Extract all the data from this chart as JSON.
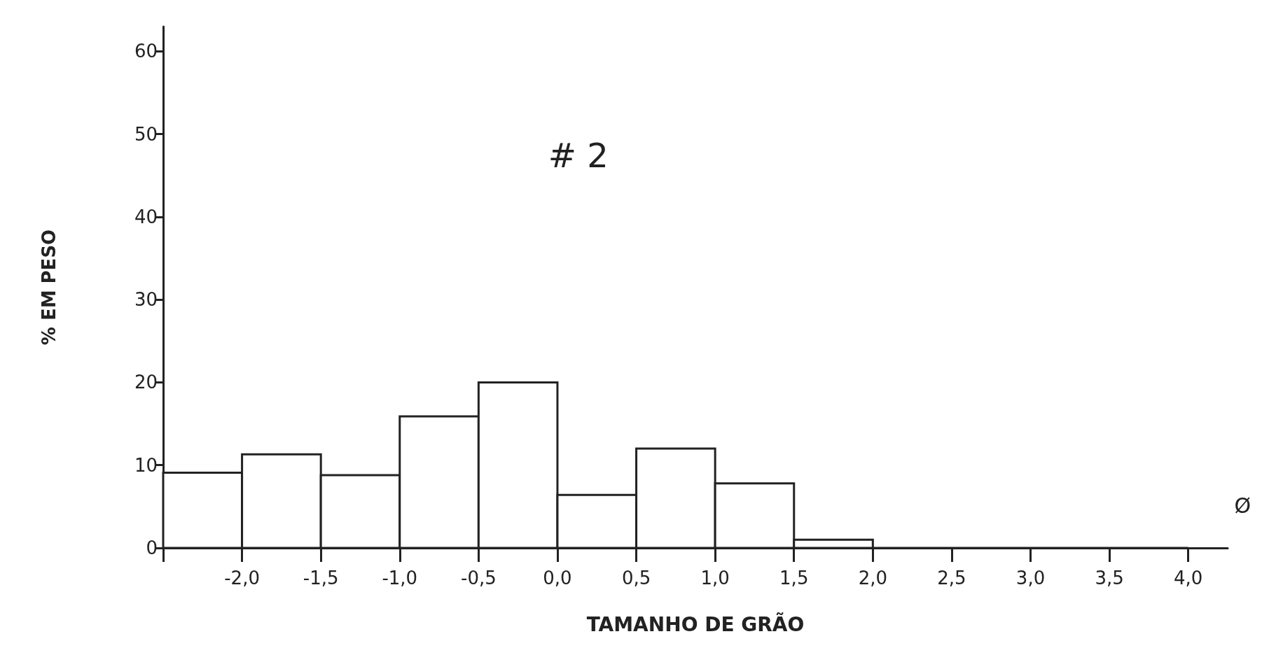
{
  "chart_data": {
    "type": "histogram",
    "title": "# 2",
    "xlabel": "TAMANHO DE GRÃO",
    "ylabel": "% EM PESO",
    "bins": [
      -2.5,
      -2.0,
      -1.5,
      -1.0,
      -0.5,
      0.0,
      0.5,
      1.0,
      1.5,
      2.0,
      2.5,
      3.0,
      3.5,
      4.0
    ],
    "values": [
      9.1,
      11.3,
      8.8,
      15.9,
      20,
      6.4,
      12,
      7.8,
      1,
      0,
      0,
      0,
      0
    ],
    "color": "#222222",
    "xlim": [
      -2.5,
      4.25
    ],
    "xticks": [
      {
        "value": -2.5,
        "label": null
      },
      {
        "value": -2.0,
        "label": "-2,0"
      },
      {
        "value": -1.5,
        "label": "-1,5"
      },
      {
        "value": -1.0,
        "label": "-1,0"
      },
      {
        "value": -0.5,
        "label": "-0,5"
      },
      {
        "value": 0.0,
        "label": "0,0"
      },
      {
        "value": 0.5,
        "label": "0,5"
      },
      {
        "value": 1.0,
        "label": "1,0"
      },
      {
        "value": 1.5,
        "label": "1,5"
      },
      {
        "value": 2.0,
        "label": "2,0"
      },
      {
        "value": 2.5,
        "label": "2,5"
      },
      {
        "value": 3.0,
        "label": "3,0"
      },
      {
        "value": 3.5,
        "label": "3,5"
      },
      {
        "value": 4.0,
        "label": "4,0"
      }
    ],
    "ylim": [
      0,
      63
    ],
    "yticks": [
      0,
      10,
      20,
      30,
      40,
      50,
      60
    ],
    "annotations": [
      "Ø"
    ],
    "grid": false
  }
}
